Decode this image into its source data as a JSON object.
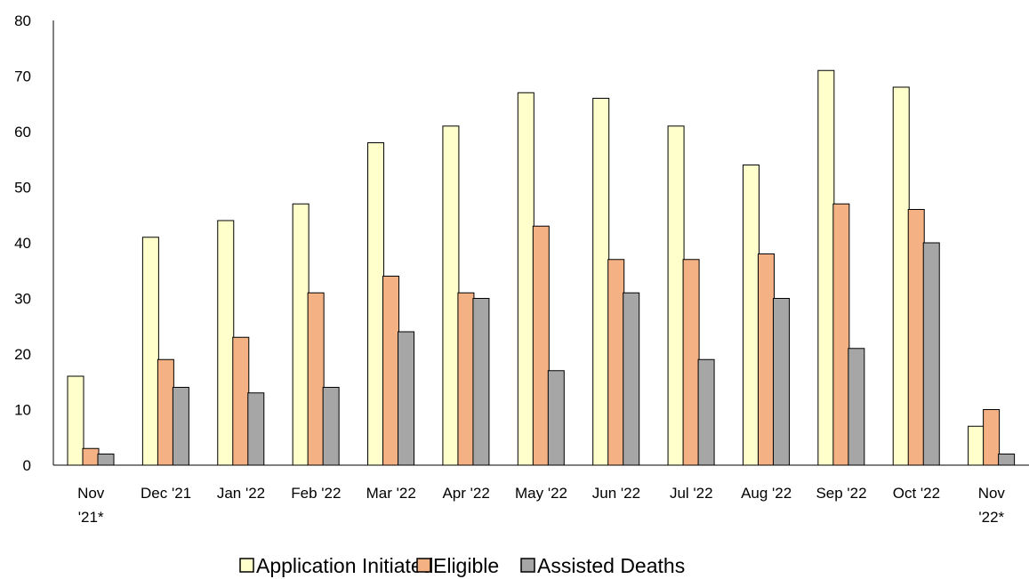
{
  "chart_data": {
    "type": "bar",
    "title": "",
    "xlabel": "",
    "ylabel": "",
    "ylim": [
      0,
      80
    ],
    "yticks": [
      0,
      10,
      20,
      30,
      40,
      50,
      60,
      70,
      80
    ],
    "grid": false,
    "legend_position": "bottom",
    "categories": [
      [
        "Nov",
        "'21*"
      ],
      [
        "Dec '21"
      ],
      [
        "Jan '22"
      ],
      [
        "Feb '22"
      ],
      [
        "Mar '22"
      ],
      [
        "Apr '22"
      ],
      [
        "May '22"
      ],
      [
        "Jun '22"
      ],
      [
        "Jul '22"
      ],
      [
        "Aug '22"
      ],
      [
        "Sep '22"
      ],
      [
        "Oct '22"
      ],
      [
        "Nov",
        "'22*"
      ]
    ],
    "series": [
      {
        "name": "Application Initiated",
        "color": "#FFFFCC",
        "values": [
          16,
          41,
          44,
          47,
          58,
          61,
          67,
          66,
          61,
          54,
          71,
          68,
          7
        ]
      },
      {
        "name": "Eligible",
        "color": "#F4B183",
        "values": [
          3,
          19,
          23,
          31,
          34,
          31,
          43,
          37,
          37,
          38,
          47,
          46,
          10
        ]
      },
      {
        "name": "Assisted Deaths",
        "color": "#A6A6A6",
        "values": [
          2,
          14,
          13,
          14,
          24,
          30,
          17,
          31,
          19,
          30,
          21,
          40,
          2
        ]
      }
    ]
  }
}
